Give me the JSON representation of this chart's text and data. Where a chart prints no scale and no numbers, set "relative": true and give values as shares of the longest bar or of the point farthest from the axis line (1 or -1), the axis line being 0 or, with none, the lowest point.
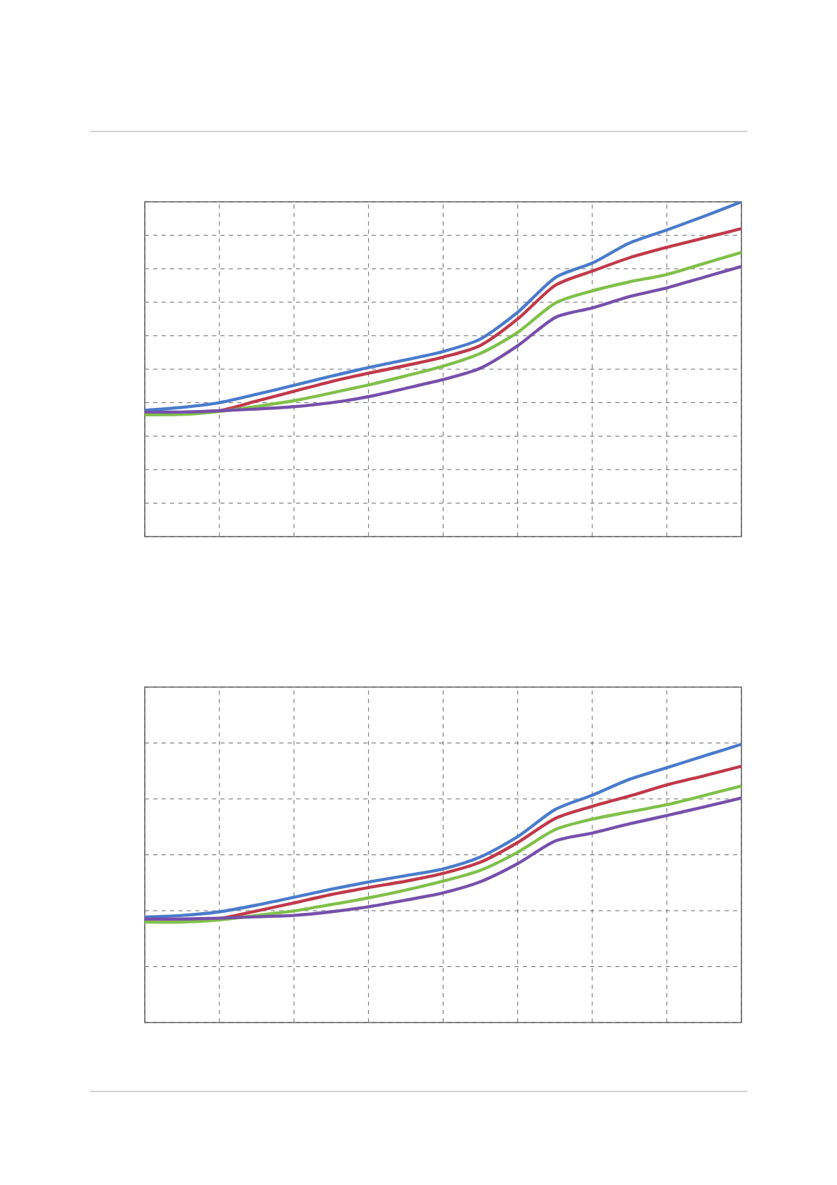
{
  "chart_data": [
    {
      "type": "line",
      "relative": true,
      "grid": true,
      "categories": [
        null,
        null,
        null,
        null,
        null,
        null,
        null,
        null,
        null,
        null,
        null,
        null,
        null,
        null,
        null,
        null,
        null
      ],
      "series": [
        {
          "color": "#4a7bcb",
          "values": [
            0.377,
            0.386,
            0.4,
            0.425,
            0.452,
            0.479,
            0.505,
            0.528,
            0.553,
            0.59,
            0.67,
            0.773,
            0.817,
            0.877,
            0.916,
            0.957,
            1.0
          ]
        },
        {
          "color": "#c0394a",
          "values": [
            0.368,
            0.37,
            0.376,
            0.405,
            0.434,
            0.463,
            0.488,
            0.511,
            0.536,
            0.571,
            0.65,
            0.75,
            0.793,
            0.833,
            0.864,
            0.892,
            0.92
          ]
        },
        {
          "color": "#80c04a",
          "values": [
            0.364,
            0.365,
            0.374,
            0.389,
            0.406,
            0.429,
            0.453,
            0.48,
            0.509,
            0.547,
            0.61,
            0.697,
            0.734,
            0.761,
            0.783,
            0.816,
            0.849
          ]
        },
        {
          "color": "#7650ab",
          "values": [
            0.372,
            0.372,
            0.376,
            0.381,
            0.388,
            0.4,
            0.418,
            0.443,
            0.469,
            0.503,
            0.57,
            0.654,
            0.683,
            0.717,
            0.743,
            0.775,
            0.807
          ]
        }
      ]
    },
    {
      "type": "line",
      "relative": true,
      "grid": true,
      "categories": [
        null,
        null,
        null,
        null,
        null,
        null,
        null,
        null,
        null,
        null,
        null,
        null,
        null,
        null,
        null,
        null,
        null
      ],
      "series": [
        {
          "color": "#4a7bcb",
          "values": [
            0.379,
            0.385,
            0.398,
            0.422,
            0.45,
            0.479,
            0.505,
            0.528,
            0.552,
            0.595,
            0.668,
            0.765,
            0.817,
            0.874,
            0.916,
            0.958,
            1.0
          ]
        },
        {
          "color": "#c0394a",
          "values": [
            0.371,
            0.371,
            0.374,
            0.401,
            0.43,
            0.46,
            0.485,
            0.508,
            0.536,
            0.576,
            0.647,
            0.733,
            0.777,
            0.814,
            0.854,
            0.887,
            0.921
          ]
        },
        {
          "color": "#80c04a",
          "values": [
            0.361,
            0.361,
            0.369,
            0.385,
            0.401,
            0.424,
            0.448,
            0.476,
            0.508,
            0.547,
            0.612,
            0.693,
            0.731,
            0.757,
            0.783,
            0.816,
            0.85
          ]
        },
        {
          "color": "#7650ab",
          "values": [
            0.372,
            0.372,
            0.375,
            0.38,
            0.385,
            0.398,
            0.416,
            0.44,
            0.466,
            0.506,
            0.571,
            0.652,
            0.681,
            0.714,
            0.744,
            0.775,
            0.807
          ]
        }
      ]
    }
  ]
}
